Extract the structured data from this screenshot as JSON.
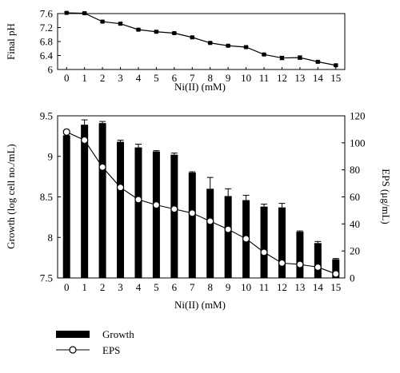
{
  "chart_data": [
    {
      "type": "line",
      "title": "",
      "xlabel": "Ni(II) (mM)",
      "ylabel": "Final pH",
      "x": [
        0,
        1,
        2,
        3,
        4,
        5,
        6,
        7,
        8,
        9,
        10,
        11,
        12,
        13,
        14,
        15
      ],
      "xticks": [
        "0",
        "1",
        "2",
        "3",
        "4",
        "5",
        "6",
        "7",
        "8",
        "9",
        "10",
        "11",
        "12",
        "13",
        "14",
        "15"
      ],
      "ylim": [
        6,
        7.6
      ],
      "yticks": [
        "6",
        "6.4",
        "6.8",
        "7.2",
        "7.6"
      ],
      "ytick_values": [
        6,
        6.4,
        6.8,
        7.2,
        7.6
      ],
      "series": [
        {
          "values": [
            7.62,
            7.61,
            7.37,
            7.31,
            7.14,
            7.08,
            7.04,
            6.92,
            6.76,
            6.68,
            6.64,
            6.43,
            6.33,
            6.34,
            6.22,
            6.12
          ],
          "errors": [
            0.02,
            0.02,
            0.02,
            0.03,
            0.02,
            0.02,
            0.02,
            0.02,
            0.02,
            0.02,
            0.02,
            0.02,
            0.05,
            0.05,
            0.02,
            0.02
          ],
          "color": "#000000"
        }
      ]
    },
    {
      "type": "bar",
      "title": "",
      "xlabel": "Ni(II) (mM)",
      "ylabel": "Growth (log cell no./mL)",
      "y2label": "EPS (μg/mL)",
      "x": [
        0,
        1,
        2,
        3,
        4,
        5,
        6,
        7,
        8,
        9,
        10,
        11,
        12,
        13,
        14,
        15
      ],
      "xticks": [
        "0",
        "1",
        "2",
        "3",
        "4",
        "5",
        "6",
        "7",
        "8",
        "9",
        "10",
        "11",
        "12",
        "13",
        "14",
        "15"
      ],
      "ylim": [
        7.5,
        9.5
      ],
      "yticks": [
        "7.5",
        "8",
        "8.5",
        "9",
        "9.5"
      ],
      "ytick_values": [
        7.5,
        8,
        8.5,
        9,
        9.5
      ],
      "y2lim": [
        0,
        120
      ],
      "y2ticks": [
        "0",
        "20",
        "40",
        "60",
        "80",
        "100",
        "120"
      ],
      "y2tick_values": [
        0,
        20,
        40,
        60,
        80,
        100,
        120
      ],
      "series": [
        {
          "name": "Growth",
          "kind": "bar",
          "axis": "left",
          "values": [
            9.26,
            9.39,
            9.41,
            9.18,
            9.11,
            9.06,
            9.02,
            8.8,
            8.6,
            8.51,
            8.46,
            8.38,
            8.37,
            8.07,
            7.93,
            7.73
          ],
          "errors": [
            0.02,
            0.06,
            0.02,
            0.02,
            0.04,
            0.01,
            0.02,
            0.01,
            0.14,
            0.09,
            0.06,
            0.03,
            0.05,
            0.01,
            0.02,
            0.01
          ],
          "color": "#000000"
        },
        {
          "name": "EPS",
          "kind": "line",
          "axis": "right",
          "marker": "open-circle",
          "values": [
            108,
            102,
            82,
            67,
            58,
            54,
            51,
            48,
            42,
            36,
            29,
            19,
            11,
            10,
            8,
            3
          ],
          "errors": [
            2,
            4,
            6,
            3,
            10,
            4,
            3,
            6,
            10,
            2,
            5,
            4,
            1,
            1,
            1,
            1
          ],
          "color": "#000000"
        }
      ],
      "legend": {
        "position": "bottom-left"
      }
    }
  ]
}
